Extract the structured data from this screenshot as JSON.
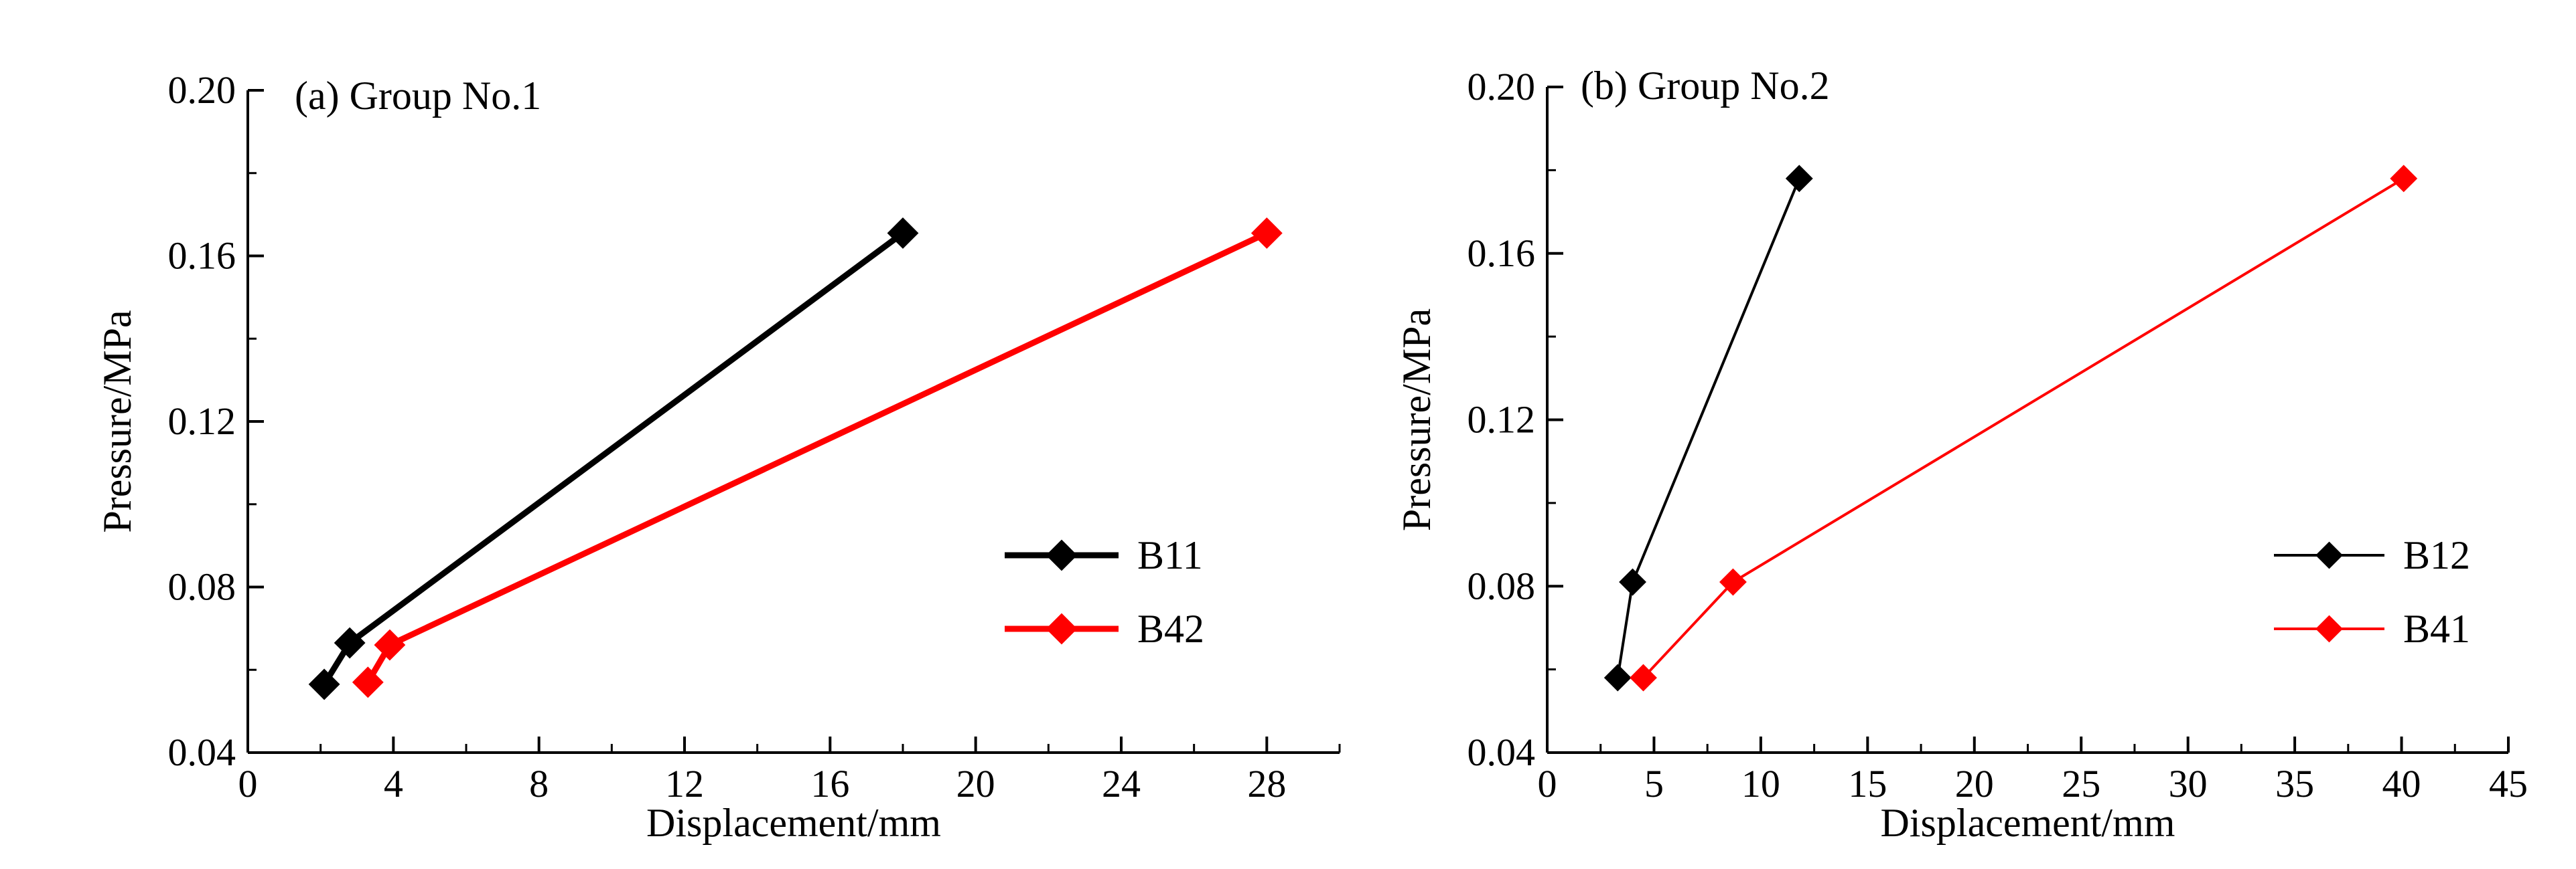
{
  "chart_data": [
    {
      "type": "line",
      "title": "(a) Group No.1",
      "xlabel": "Displacement/mm",
      "ylabel": "Pressure/MPa",
      "xlim": [
        0,
        30
      ],
      "ylim": [
        0.04,
        0.2
      ],
      "xticks": [
        "0",
        "4",
        "8",
        "12",
        "16",
        "20",
        "24",
        "28"
      ],
      "yticks": [
        "0.04",
        "0.08",
        "0.12",
        "0.16",
        "0.20"
      ],
      "grid": false,
      "legend_position": "right",
      "series": [
        {
          "name": "B11",
          "color": "#000000",
          "x": [
            2.1,
            2.8,
            18.0
          ],
          "y": [
            0.0565,
            0.0665,
            0.1655
          ]
        },
        {
          "name": "B42",
          "color": "#ff0000",
          "x": [
            3.3,
            3.9,
            28.0
          ],
          "y": [
            0.057,
            0.066,
            0.1655
          ]
        }
      ]
    },
    {
      "type": "line",
      "title": "(b) Group No.2",
      "xlabel": "Displacement/mm",
      "ylabel": "Pressure/MPa",
      "xlim": [
        0,
        45
      ],
      "ylim": [
        0.04,
        0.2
      ],
      "xticks": [
        "0",
        "5",
        "10",
        "15",
        "20",
        "25",
        "30",
        "35",
        "40",
        "45"
      ],
      "yticks": [
        "0.04",
        "0.08",
        "0.12",
        "0.16",
        "0.20"
      ],
      "grid": false,
      "legend_position": "right",
      "series": [
        {
          "name": "B12",
          "color": "#000000",
          "x": [
            3.3,
            4.0,
            11.8
          ],
          "y": [
            0.058,
            0.081,
            0.178
          ]
        },
        {
          "name": "B41",
          "color": "#ff0000",
          "x": [
            4.5,
            8.7,
            40.1
          ],
          "y": [
            0.058,
            0.081,
            0.178
          ]
        }
      ]
    }
  ]
}
